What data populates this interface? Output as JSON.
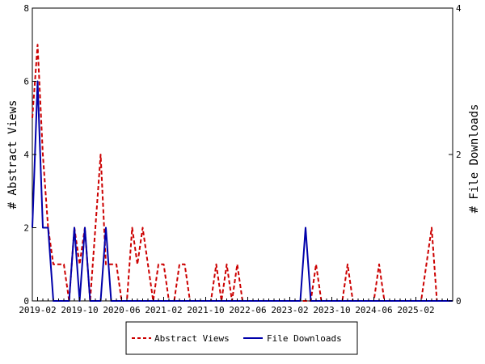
{
  "chart_data": {
    "type": "line",
    "title": "",
    "xlabel": "",
    "ylabel": "# Abstract Views",
    "y2label": "# File Downloads",
    "ylim": [
      0,
      8
    ],
    "y2lim": [
      0,
      4
    ],
    "yticks": [
      "0",
      "2",
      "4",
      "6",
      "8"
    ],
    "y2ticks": [
      "0",
      "2",
      "4"
    ],
    "grid": false,
    "legend_position": "bottom-center",
    "x_months": [
      "2019-01",
      "2019-02",
      "2019-03",
      "2019-04",
      "2019-05",
      "2019-06",
      "2019-07",
      "2019-08",
      "2019-09",
      "2019-10",
      "2019-11",
      "2019-12",
      "2020-01",
      "2020-02",
      "2020-03",
      "2020-04",
      "2020-05",
      "2020-06",
      "2020-07",
      "2020-08",
      "2020-09",
      "2020-10",
      "2020-11",
      "2020-12",
      "2021-01",
      "2021-02",
      "2021-03",
      "2021-04",
      "2021-05",
      "2021-06",
      "2021-07",
      "2021-08",
      "2021-09",
      "2021-10",
      "2021-11",
      "2021-12",
      "2022-01",
      "2022-02",
      "2022-03",
      "2022-04",
      "2022-05",
      "2022-06",
      "2022-07",
      "2022-08",
      "2022-09",
      "2022-10",
      "2022-11",
      "2022-12",
      "2023-01",
      "2023-02",
      "2023-03",
      "2023-04",
      "2023-05",
      "2023-06",
      "2023-07",
      "2023-08",
      "2023-09",
      "2023-10",
      "2023-11",
      "2023-12",
      "2024-01",
      "2024-02",
      "2024-03",
      "2024-04",
      "2024-05",
      "2024-06",
      "2024-07",
      "2024-08",
      "2024-09",
      "2024-10",
      "2024-11",
      "2024-12",
      "2025-01",
      "2025-02",
      "2025-03",
      "2025-04",
      "2025-05",
      "2025-06",
      "2025-07",
      "2025-08",
      "2025-09"
    ],
    "xticks": [
      "2019-02",
      "2019-10",
      "2020-06",
      "2021-02",
      "2021-10",
      "2022-06",
      "2023-02",
      "2023-10",
      "2024-06",
      "2025-02"
    ],
    "series": [
      {
        "name": "Abstract Views",
        "axis": "left",
        "color": "#cc0000",
        "dash": true,
        "values": [
          5,
          7,
          4,
          2,
          1,
          1,
          1,
          0,
          2,
          1,
          2,
          0,
          2,
          4,
          1,
          1,
          1,
          0,
          0,
          2,
          1,
          2,
          1,
          0,
          1,
          1,
          0,
          0,
          1,
          1,
          0,
          0,
          0,
          0,
          0,
          1,
          0,
          1,
          0,
          1,
          0,
          0,
          0,
          0,
          0,
          0,
          0,
          0,
          0,
          0,
          0,
          0,
          0,
          0,
          1,
          0,
          0,
          0,
          0,
          0,
          1,
          0,
          0,
          0,
          0,
          0,
          1,
          0,
          0,
          0,
          0,
          0,
          0,
          0,
          0,
          1,
          2,
          0,
          0,
          0,
          0
        ]
      },
      {
        "name": "File Downloads",
        "axis": "right",
        "color": "#0000aa",
        "dash": false,
        "values": [
          1,
          3,
          1,
          1,
          0,
          0,
          0,
          0,
          1,
          0,
          1,
          0,
          0,
          0,
          1,
          0,
          0,
          0,
          0,
          0,
          0,
          0,
          0,
          0,
          0,
          0,
          0,
          0,
          0,
          0,
          0,
          0,
          0,
          0,
          0,
          0,
          0,
          0,
          0,
          0,
          0,
          0,
          0,
          0,
          0,
          0,
          0,
          0,
          0,
          0,
          0,
          0,
          1,
          0,
          0,
          0,
          0,
          0,
          0,
          0,
          0,
          0,
          0,
          0,
          0,
          0,
          0,
          0,
          0,
          0,
          0,
          0,
          0,
          0,
          0,
          0,
          0,
          0,
          0,
          0,
          0
        ]
      }
    ]
  }
}
